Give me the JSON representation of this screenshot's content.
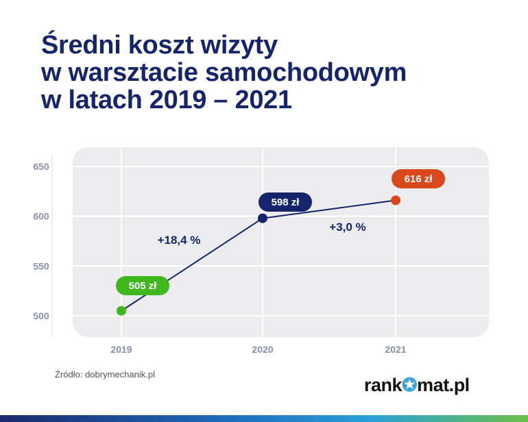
{
  "title_lines": [
    "Średni koszt wizyty",
    "w warsztacie samochodowym",
    "w latach 2019 – 2021"
  ],
  "chart_data": {
    "type": "line",
    "title": "Średni koszt wizyty w warsztacie samochodowym w latach 2019 – 2021",
    "categories": [
      "2019",
      "2020",
      "2021"
    ],
    "values": [
      505,
      598,
      616
    ],
    "data_labels": [
      "505 zł",
      "598 zł",
      "616 zł"
    ],
    "point_colors": [
      "#3fb81f",
      "#15246b",
      "#d9481b"
    ],
    "annotations": [
      "+18,4 %",
      "+3,0 %"
    ],
    "yticks": [
      "650",
      "600",
      "550",
      "500"
    ],
    "ytick_values": [
      650,
      600,
      550,
      500
    ],
    "ylim": [
      500,
      650
    ],
    "grid": true,
    "line_color": "#15246b",
    "xlabel": "",
    "ylabel": ""
  },
  "source": "Źródło: dobrymechanik.pl",
  "logo": {
    "left": "rank",
    "star": "✪",
    "right": "mat.pl"
  }
}
